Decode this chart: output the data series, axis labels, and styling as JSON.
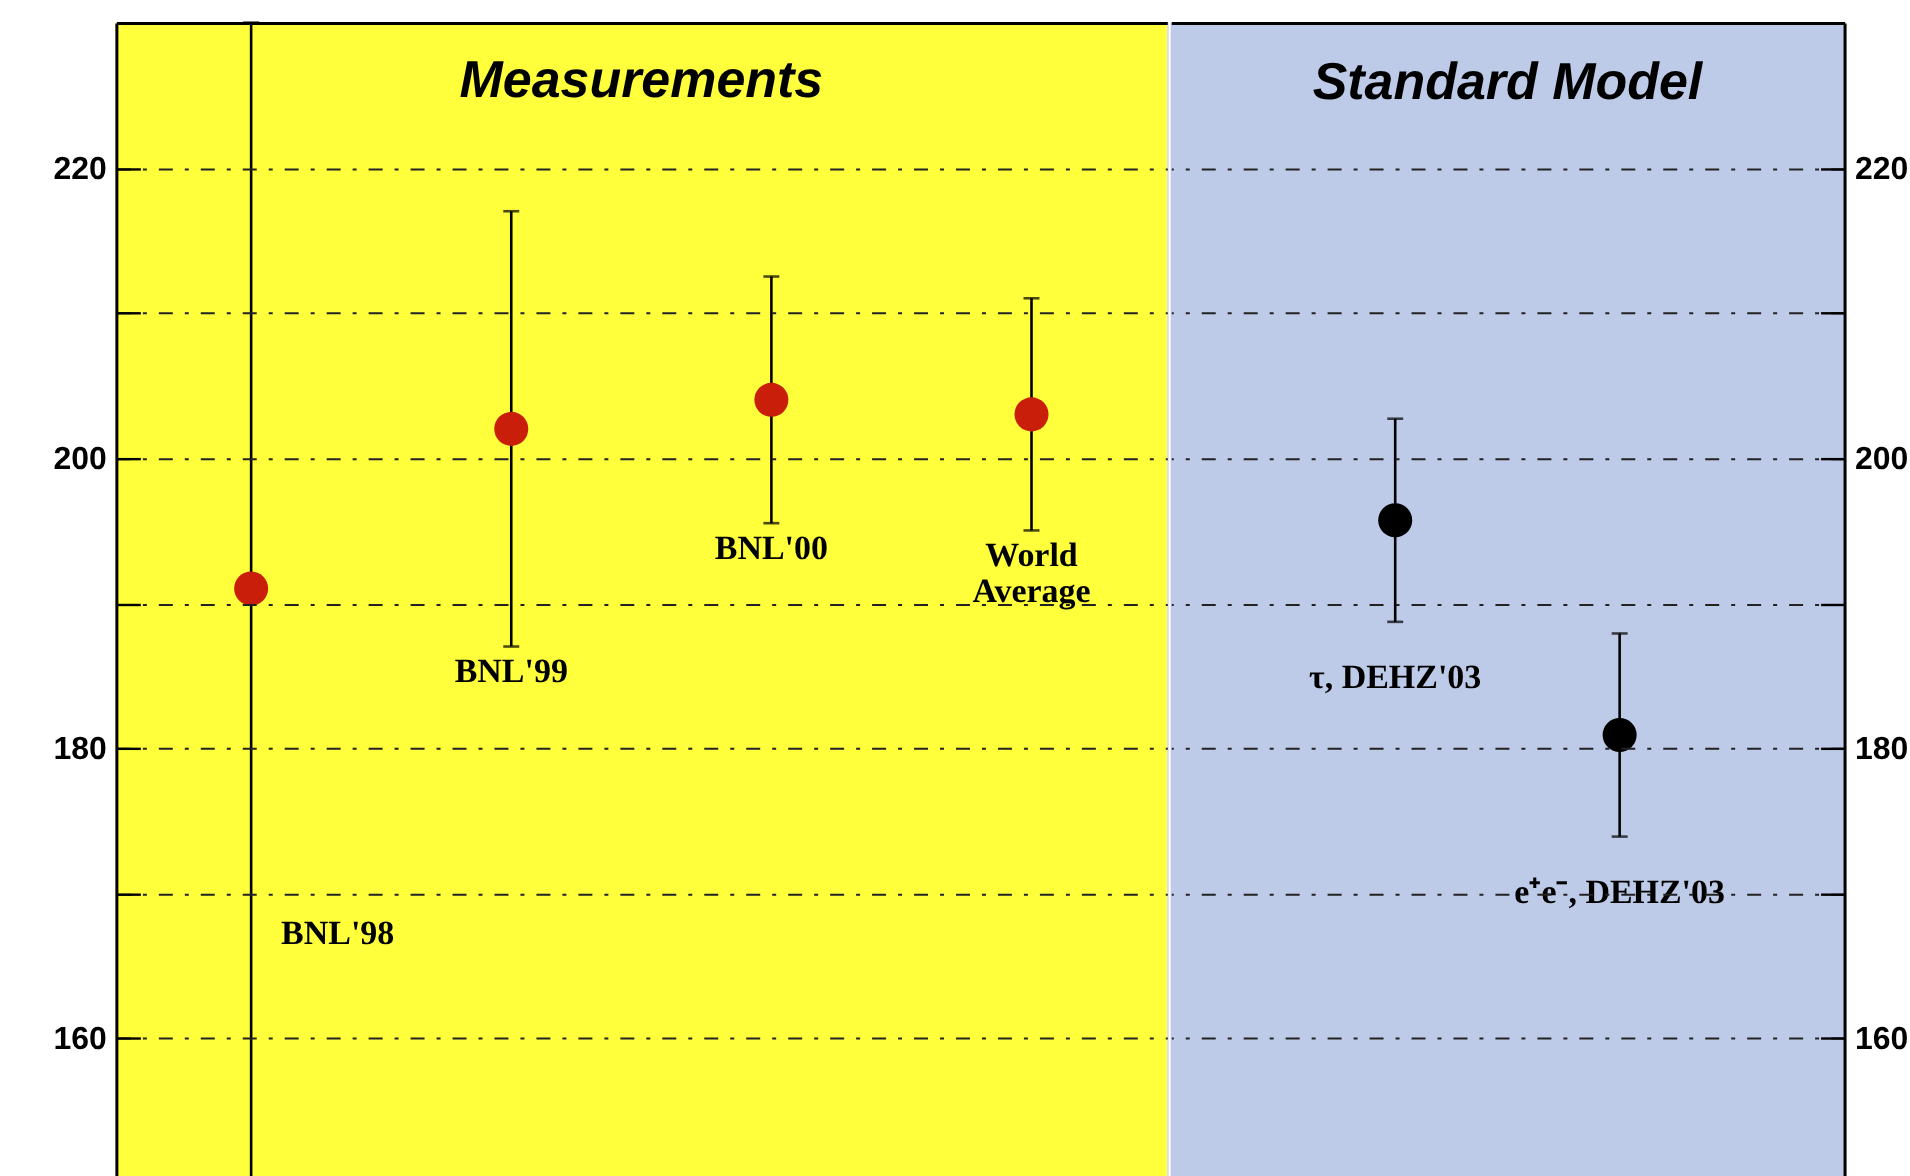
{
  "chart_data": [
    {
      "type": "scatter",
      "title": "Measurements",
      "categories": [
        "BNL'98",
        "BNL'99",
        "BNL'00",
        "World\nAverage"
      ],
      "series": [
        {
          "color": "#c81e0a",
          "values": [
            191,
            202,
            204,
            203
          ],
          "errors": [
            [
              150,
              230
            ],
            15,
            8.5,
            8
          ]
        }
      ],
      "marker": "circle",
      "ylim": [
        150,
        230
      ],
      "yticks": [
        160,
        {
          "value": 170,
          "label": null
        },
        180,
        {
          "value": 190,
          "label": null
        },
        200,
        {
          "value": 210,
          "label": null
        },
        220
      ],
      "grid": "y",
      "bands": [
        {
          "axis": "y",
          "from": 150,
          "to": 230,
          "color": "#ffff3c"
        }
      ]
    },
    {
      "type": "scatter",
      "title": "Standard Model",
      "categories": [
        "τ, DEHZ'03",
        "e⁺e⁻, DEHZ'03"
      ],
      "series": [
        {
          "color": "#000000",
          "values": [
            195.7,
            180.9
          ],
          "errors": [
            7,
            7
          ]
        }
      ],
      "marker": "circle",
      "ylim": [
        150,
        230
      ],
      "yticks": [
        160,
        {
          "value": 170,
          "label": null
        },
        180,
        {
          "value": 190,
          "label": null
        },
        200,
        {
          "value": 210,
          "label": null
        },
        220
      ],
      "grid": "y",
      "bands": [
        {
          "axis": "y",
          "from": 150,
          "to": 230,
          "color": "#bdcbe8"
        }
      ]
    }
  ]
}
